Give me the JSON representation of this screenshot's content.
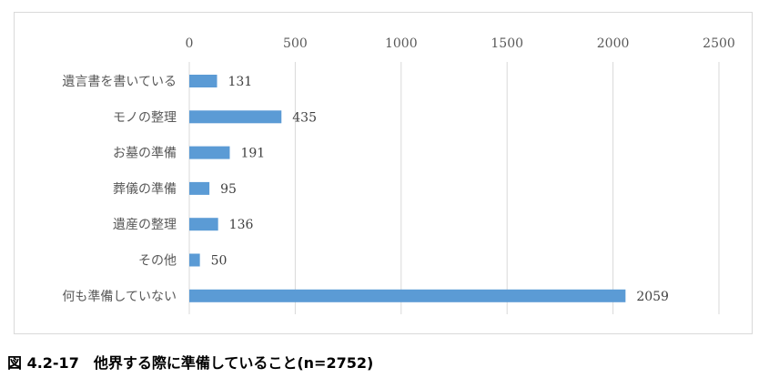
{
  "chart_data": {
    "type": "bar",
    "orientation": "horizontal",
    "categories": [
      "遺言書を書いている",
      "モノの整理",
      "お墓の準備",
      "葬儀の準備",
      "遺産の整理",
      "その他",
      "何も準備していない"
    ],
    "values": [
      131,
      435,
      191,
      95,
      136,
      50,
      2059
    ],
    "xlim": [
      0,
      2500
    ],
    "xticks": [
      "0",
      "500",
      "1000",
      "1500",
      "2000",
      "2500"
    ],
    "xtick_values": [
      0,
      500,
      1000,
      1500,
      2000,
      2500
    ],
    "axis_position": "top",
    "grid": true,
    "bar_color": "#5b9bd5",
    "title": "",
    "xlabel": "",
    "ylabel": ""
  },
  "caption": "図 4.2-17　他界する際に準備していること(n=2752)"
}
